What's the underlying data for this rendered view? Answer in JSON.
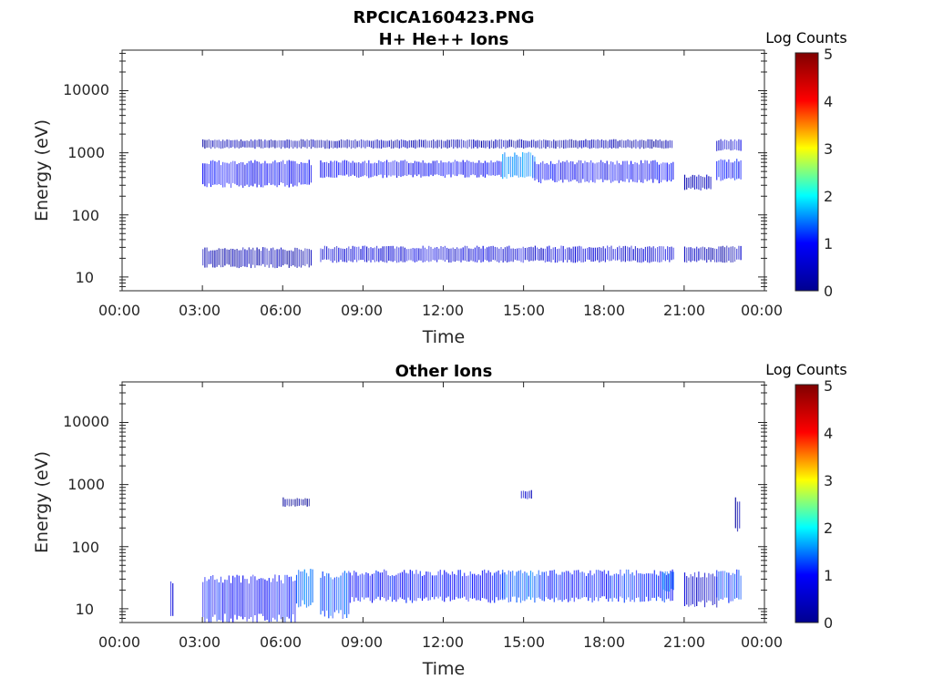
{
  "figure": {
    "title": "RPCICA160423.PNG",
    "colorscale": [
      "#00008f",
      "#0000ff",
      "#00ffff",
      "#ffff00",
      "#ff0000",
      "#800000"
    ]
  },
  "chart_data": [
    {
      "type": "heatmap",
      "title": "H+ He++ Ions",
      "xlabel": "Time",
      "ylabel": "Energy (eV)",
      "x_ticks": [
        "00:00",
        "03:00",
        "06:00",
        "09:00",
        "12:00",
        "15:00",
        "18:00",
        "21:00",
        "00:00"
      ],
      "xlim_hours": [
        0,
        24
      ],
      "y_scale": "log",
      "ylim": [
        6,
        45000
      ],
      "y_ticks": [
        10,
        100,
        1000,
        10000
      ],
      "y_tick_labels": [
        "10",
        "100",
        "1000",
        "10000"
      ],
      "colorbar": {
        "label": "Log Counts",
        "range": [
          0,
          5
        ],
        "ticks": [
          "0",
          "1",
          "2",
          "3",
          "4",
          "5"
        ]
      },
      "bands": [
        {
          "t_start": 3.0,
          "t_end": 7.1,
          "e_low": 300,
          "e_high": 700,
          "log_counts": 0.9
        },
        {
          "t_start": 7.4,
          "t_end": 14.2,
          "e_low": 420,
          "e_high": 720,
          "log_counts": 0.9
        },
        {
          "t_start": 14.2,
          "t_end": 15.4,
          "e_low": 420,
          "e_high": 950,
          "log_counts": 1.5
        },
        {
          "t_start": 15.4,
          "t_end": 20.6,
          "e_low": 350,
          "e_high": 700,
          "log_counts": 0.9
        },
        {
          "t_start": 21.0,
          "t_end": 22.0,
          "e_low": 260,
          "e_high": 420,
          "log_counts": 0.4
        },
        {
          "t_start": 22.2,
          "t_end": 23.1,
          "e_low": 380,
          "e_high": 750,
          "log_counts": 1.0
        },
        {
          "t_start": 3.0,
          "t_end": 20.6,
          "e_low": 1200,
          "e_high": 1600,
          "log_counts": 0.3
        },
        {
          "t_start": 22.2,
          "t_end": 23.1,
          "e_low": 1100,
          "e_high": 1600,
          "log_counts": 0.6
        },
        {
          "t_start": 3.0,
          "t_end": 7.1,
          "e_low": 15,
          "e_high": 28,
          "log_counts": 0.3
        },
        {
          "t_start": 7.4,
          "t_end": 20.6,
          "e_low": 18,
          "e_high": 30,
          "log_counts": 0.6
        },
        {
          "t_start": 21.0,
          "t_end": 23.1,
          "e_low": 18,
          "e_high": 30,
          "log_counts": 0.4
        }
      ]
    },
    {
      "type": "heatmap",
      "title": "Other Ions",
      "xlabel": "Time",
      "ylabel": "Energy (eV)",
      "x_ticks": [
        "00:00",
        "03:00",
        "06:00",
        "09:00",
        "12:00",
        "15:00",
        "18:00",
        "21:00",
        "00:00"
      ],
      "xlim_hours": [
        0,
        24
      ],
      "y_scale": "log",
      "ylim": [
        6,
        45000
      ],
      "y_ticks": [
        10,
        100,
        1000,
        10000
      ],
      "y_tick_labels": [
        "10",
        "100",
        "1000",
        "10000"
      ],
      "colorbar": {
        "label": "Log Counts",
        "range": [
          0,
          5
        ],
        "ticks": [
          "0",
          "1",
          "2",
          "3",
          "4",
          "5"
        ]
      },
      "bands": [
        {
          "t_start": 1.8,
          "t_end": 1.9,
          "e_low": 7,
          "e_high": 25,
          "log_counts": 0.7
        },
        {
          "t_start": 3.0,
          "t_end": 6.5,
          "e_low": 7,
          "e_high": 30,
          "log_counts": 1.0
        },
        {
          "t_start": 6.5,
          "t_end": 7.1,
          "e_low": 12,
          "e_high": 38,
          "log_counts": 1.4
        },
        {
          "t_start": 7.4,
          "t_end": 8.5,
          "e_low": 8,
          "e_high": 35,
          "log_counts": 1.3
        },
        {
          "t_start": 8.5,
          "t_end": 14.2,
          "e_low": 14,
          "e_high": 38,
          "log_counts": 1.0
        },
        {
          "t_start": 14.2,
          "t_end": 15.6,
          "e_low": 14,
          "e_high": 38,
          "log_counts": 1.4
        },
        {
          "t_start": 15.6,
          "t_end": 20.6,
          "e_low": 14,
          "e_high": 38,
          "log_counts": 1.1
        },
        {
          "t_start": 20.2,
          "t_end": 20.6,
          "e_low": 20,
          "e_high": 38,
          "log_counts": 1.5
        },
        {
          "t_start": 21.0,
          "t_end": 22.2,
          "e_low": 12,
          "e_high": 35,
          "log_counts": 0.5
        },
        {
          "t_start": 22.2,
          "t_end": 23.1,
          "e_low": 14,
          "e_high": 38,
          "log_counts": 1.2
        },
        {
          "t_start": 14.9,
          "t_end": 15.3,
          "e_low": 600,
          "e_high": 800,
          "log_counts": 0.5
        },
        {
          "t_start": 6.0,
          "t_end": 7.0,
          "e_low": 450,
          "e_high": 600,
          "log_counts": 0.1
        },
        {
          "t_start": 22.9,
          "t_end": 23.1,
          "e_low": 200,
          "e_high": 600,
          "log_counts": 0.3
        }
      ]
    }
  ]
}
